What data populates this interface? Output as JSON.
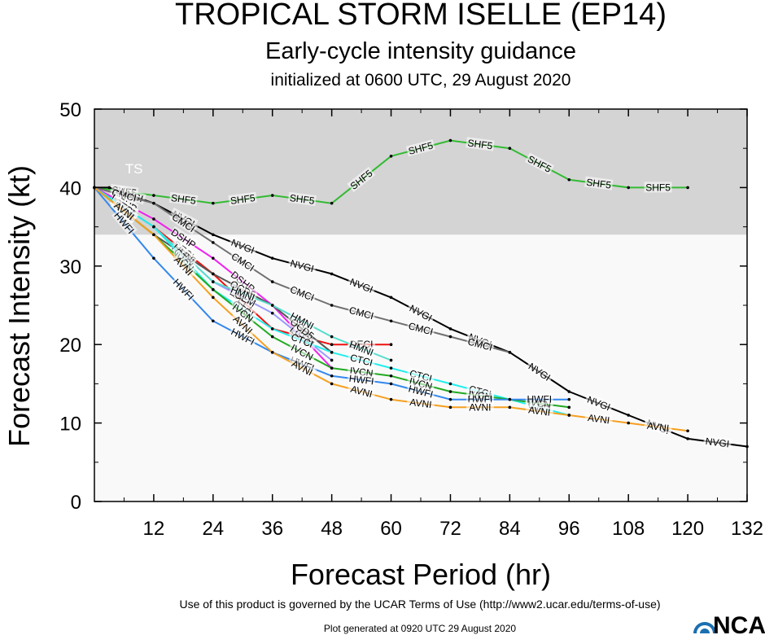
{
  "chart_data": {
    "type": "line",
    "title": "TROPICAL STORM ISELLE (EP14)",
    "subtitle": "Early-cycle intensity guidance",
    "subtitle2": "initialized at 0600 UTC, 29 August 2020",
    "xlabel": "Forecast Period (hr)",
    "ylabel": "Forecast Intensity (kt)",
    "xlim": [
      0,
      132
    ],
    "ylim": [
      0,
      50
    ],
    "xticks": [
      "12",
      "24",
      "36",
      "48",
      "60",
      "72",
      "84",
      "96",
      "108",
      "120",
      "132"
    ],
    "yticks": [
      "0",
      "10",
      "20",
      "30",
      "40",
      "50"
    ],
    "band_label": "TS",
    "band_ymin": 34,
    "band_color": "#d4d4d4",
    "plot_bg": "#f9f9f9",
    "series": [
      {
        "name": "SHF5",
        "color": "#33bb33",
        "x": [
          0,
          12,
          24,
          36,
          48,
          60,
          72,
          84,
          96,
          108,
          120
        ],
        "y": [
          40,
          39,
          38,
          39,
          38,
          44,
          46,
          45,
          41,
          40,
          40
        ]
      },
      {
        "name": "NVGI",
        "color": "#000000",
        "x": [
          0,
          3,
          12,
          24,
          36,
          48,
          60,
          72,
          84,
          96,
          108,
          120,
          132
        ],
        "y": [
          40,
          40,
          38,
          34,
          31,
          29,
          26,
          22,
          19,
          14,
          11,
          8,
          7
        ]
      },
      {
        "name": "CMCI",
        "color": "#707070",
        "x": [
          0,
          12,
          24,
          36,
          48,
          60,
          72,
          84
        ],
        "y": [
          40,
          38,
          33,
          28,
          25,
          23,
          21,
          19
        ]
      },
      {
        "name": "DSHP",
        "color": "#ee22ee",
        "x": [
          0,
          12,
          24,
          36,
          48
        ],
        "y": [
          40,
          36,
          31,
          25,
          17
        ]
      },
      {
        "name": "DECI",
        "color": "#ee1111",
        "x": [
          0,
          12,
          24,
          36,
          48,
          60
        ],
        "y": [
          40,
          35,
          29,
          22,
          20,
          20
        ]
      },
      {
        "name": "LGEM",
        "color": "#9999ff",
        "x": [
          0,
          12,
          24,
          36,
          48
        ],
        "y": [
          40,
          35,
          28,
          24,
          18
        ]
      },
      {
        "name": "OCD5",
        "color": "#555555",
        "x": [
          0,
          12,
          24,
          36,
          48
        ],
        "y": [
          40,
          34,
          29,
          25,
          19
        ]
      },
      {
        "name": "HMNI",
        "color": "#55ddcc",
        "x": [
          0,
          12,
          24,
          36,
          48,
          60
        ],
        "y": [
          40,
          35,
          28,
          25,
          21,
          18
        ]
      },
      {
        "name": "CTCI",
        "color": "#22eeee",
        "x": [
          0,
          12,
          24,
          36,
          48,
          60,
          72,
          84,
          96
        ],
        "y": [
          40,
          35,
          27,
          22,
          19,
          17,
          15,
          13,
          11
        ]
      },
      {
        "name": "IVCN",
        "color": "#22aa22",
        "x": [
          0,
          12,
          24,
          36,
          48,
          60,
          72,
          84,
          96
        ],
        "y": [
          40,
          34,
          27,
          21,
          17,
          16,
          14,
          13,
          12
        ]
      },
      {
        "name": "HWFI",
        "color": "#3388ee",
        "x": [
          0,
          12,
          24,
          36,
          48,
          60,
          72,
          84,
          96
        ],
        "y": [
          40,
          31,
          23,
          19,
          16,
          15,
          13,
          13,
          13
        ]
      },
      {
        "name": "AVNI",
        "color": "#f5a020",
        "x": [
          0,
          12,
          24,
          36,
          48,
          60,
          72,
          84,
          96,
          108,
          120
        ],
        "y": [
          40,
          34,
          26,
          19,
          15,
          13,
          12,
          12,
          11,
          10,
          9
        ]
      }
    ]
  },
  "footer": {
    "terms": "Use of this product is governed by the UCAR Terms of Use (http://www2.ucar.edu/terms-of-use)",
    "generated": "Plot generated at 0920 UTC   29 August 2020",
    "logo": "NCAR"
  }
}
